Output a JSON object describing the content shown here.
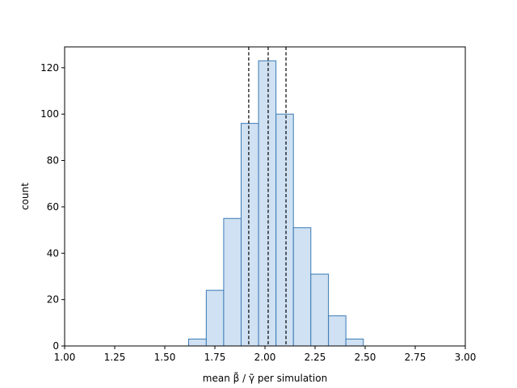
{
  "chart_data": {
    "type": "histogram",
    "title": "",
    "xlabel": "mean β̃ / γ̃ per simulation",
    "ylabel": "count",
    "xlim": [
      1.0,
      3.0
    ],
    "ylim": [
      0,
      129
    ],
    "grid": false,
    "bar_fill": "#cfe1f2",
    "bar_edge": "#3a7ab5",
    "x_ticks": [
      1.0,
      1.25,
      1.5,
      1.75,
      2.0,
      2.25,
      2.5,
      2.75,
      3.0
    ],
    "x_tick_labels": [
      "1.00",
      "1.25",
      "1.50",
      "1.75",
      "2.00",
      "2.25",
      "2.50",
      "2.75",
      "3.00"
    ],
    "y_ticks": [
      0,
      20,
      40,
      60,
      80,
      100,
      120
    ],
    "y_tick_labels": [
      "0",
      "20",
      "40",
      "60",
      "80",
      "100",
      "120"
    ],
    "bins": [
      {
        "x0": 1.619,
        "x1": 1.707,
        "count": 3
      },
      {
        "x0": 1.707,
        "x1": 1.794,
        "count": 24
      },
      {
        "x0": 1.794,
        "x1": 1.881,
        "count": 55
      },
      {
        "x0": 1.881,
        "x1": 1.968,
        "count": 96
      },
      {
        "x0": 1.968,
        "x1": 2.055,
        "count": 123
      },
      {
        "x0": 2.055,
        "x1": 2.142,
        "count": 100
      },
      {
        "x0": 2.142,
        "x1": 2.229,
        "count": 51
      },
      {
        "x0": 2.229,
        "x1": 2.317,
        "count": 31
      },
      {
        "x0": 2.317,
        "x1": 2.404,
        "count": 13
      },
      {
        "x0": 2.404,
        "x1": 2.491,
        "count": 3
      }
    ],
    "vlines": [
      1.919,
      2.016,
      2.105
    ],
    "vline_color": "#000000"
  }
}
